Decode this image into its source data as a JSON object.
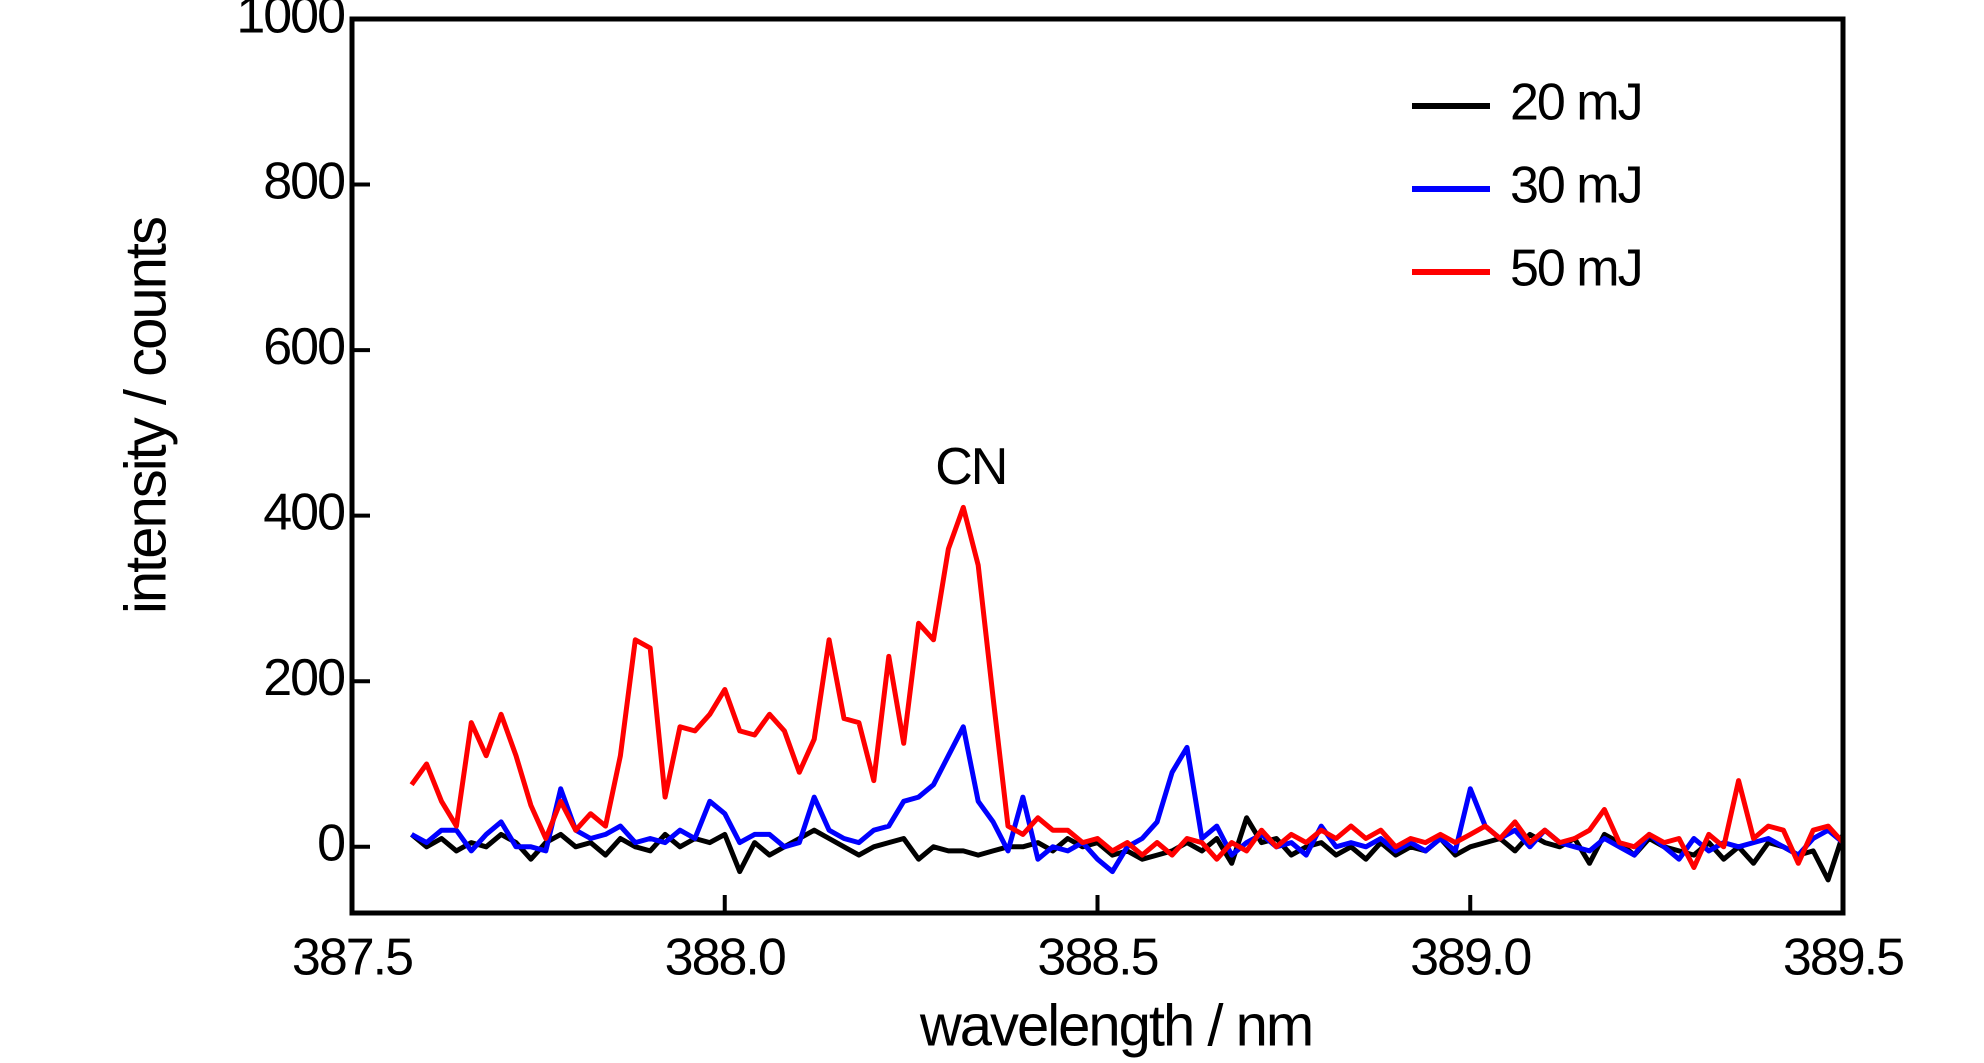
{
  "chart_data": {
    "type": "line",
    "xlabel": "wavelength / nm",
    "ylabel": "intensity / counts",
    "annotation": "CN",
    "annotation_x": 388.33,
    "annotation_y": 455,
    "x": [
      387.58,
      387.6,
      387.62,
      387.64,
      387.66,
      387.68,
      387.7,
      387.72,
      387.74,
      387.76,
      387.78,
      387.8,
      387.82,
      387.84,
      387.86,
      387.88,
      387.9,
      387.92,
      387.94,
      387.96,
      387.98,
      388.0,
      388.02,
      388.04,
      388.06,
      388.08,
      388.1,
      388.12,
      388.14,
      388.16,
      388.18,
      388.2,
      388.22,
      388.24,
      388.26,
      388.28,
      388.3,
      388.32,
      388.34,
      388.36,
      388.38,
      388.4,
      388.42,
      388.44,
      388.46,
      388.48,
      388.5,
      388.52,
      388.54,
      388.56,
      388.58,
      388.6,
      388.62,
      388.64,
      388.66,
      388.68,
      388.7,
      388.72,
      388.74,
      388.76,
      388.78,
      388.8,
      388.82,
      388.84,
      388.86,
      388.88,
      388.9,
      388.92,
      388.94,
      388.96,
      388.98,
      389.0,
      389.02,
      389.04,
      389.06,
      389.08,
      389.1,
      389.12,
      389.14,
      389.16,
      389.18,
      389.2,
      389.22,
      389.24,
      389.26,
      389.28,
      389.3,
      389.32,
      389.34,
      389.36,
      389.38,
      389.4,
      389.42,
      389.44,
      389.46,
      389.48,
      389.5
    ],
    "series": [
      {
        "name": "20 mJ",
        "color": "#000000",
        "values": [
          15,
          0,
          10,
          -5,
          5,
          0,
          15,
          5,
          -15,
          5,
          15,
          0,
          5,
          -10,
          10,
          0,
          -5,
          15,
          0,
          10,
          5,
          15,
          -30,
          5,
          -10,
          0,
          10,
          20,
          10,
          0,
          -10,
          0,
          5,
          10,
          -15,
          0,
          -5,
          -5,
          -10,
          -5,
          0,
          0,
          5,
          -5,
          10,
          0,
          5,
          -10,
          -5,
          -15,
          -10,
          -5,
          5,
          -5,
          10,
          -20,
          35,
          5,
          10,
          -10,
          0,
          5,
          -10,
          0,
          -15,
          5,
          -10,
          0,
          -5,
          10,
          -10,
          0,
          5,
          10,
          -5,
          15,
          5,
          0,
          10,
          -20,
          15,
          5,
          -10,
          10,
          0,
          -5,
          -10,
          5,
          -15,
          0,
          -20,
          5,
          0,
          -10,
          -5,
          -40,
          15
        ]
      },
      {
        "name": "30 mJ",
        "color": "#0000ff",
        "values": [
          15,
          5,
          20,
          20,
          -5,
          15,
          30,
          0,
          0,
          -5,
          70,
          20,
          10,
          15,
          25,
          5,
          10,
          5,
          20,
          10,
          55,
          40,
          5,
          15,
          15,
          0,
          5,
          60,
          20,
          10,
          5,
          20,
          25,
          55,
          60,
          75,
          110,
          145,
          55,
          30,
          -5,
          60,
          -15,
          0,
          -5,
          5,
          -15,
          -30,
          0,
          10,
          30,
          90,
          120,
          10,
          25,
          -10,
          5,
          15,
          0,
          5,
          -10,
          25,
          0,
          5,
          0,
          10,
          -5,
          5,
          -5,
          10,
          -5,
          70,
          25,
          10,
          20,
          0,
          20,
          5,
          0,
          -5,
          10,
          0,
          -10,
          15,
          0,
          -15,
          10,
          -5,
          5,
          0,
          5,
          10,
          0,
          -10,
          10,
          20,
          5
        ]
      },
      {
        "name": "50 mJ",
        "color": "#ff0000",
        "values": [
          75,
          100,
          55,
          25,
          150,
          110,
          160,
          110,
          50,
          10,
          55,
          20,
          40,
          25,
          110,
          250,
          240,
          60,
          145,
          140,
          160,
          190,
          140,
          135,
          160,
          140,
          90,
          130,
          250,
          155,
          150,
          80,
          230,
          125,
          270,
          250,
          360,
          410,
          340,
          180,
          25,
          15,
          35,
          20,
          20,
          5,
          10,
          -5,
          5,
          -10,
          5,
          -10,
          10,
          5,
          -15,
          5,
          -5,
          20,
          0,
          15,
          5,
          20,
          10,
          25,
          10,
          20,
          0,
          10,
          5,
          15,
          5,
          15,
          25,
          10,
          30,
          5,
          20,
          5,
          10,
          20,
          45,
          5,
          0,
          15,
          5,
          10,
          -25,
          15,
          0,
          80,
          10,
          25,
          20,
          -20,
          20,
          25,
          5
        ]
      }
    ],
    "xlim": [
      387.5,
      389.5
    ],
    "xticks": [
      {
        "value": 387.5,
        "label": "387.5"
      },
      {
        "value": 388.0,
        "label": "388.0"
      },
      {
        "value": 388.5,
        "label": "388.5"
      },
      {
        "value": 389.0,
        "label": "389.0"
      },
      {
        "value": 389.5,
        "label": "389.5"
      }
    ],
    "ylim": [
      -80,
      1000
    ],
    "yticks": [
      0,
      200,
      400,
      600,
      800,
      1000
    ],
    "legend": "upper right"
  }
}
